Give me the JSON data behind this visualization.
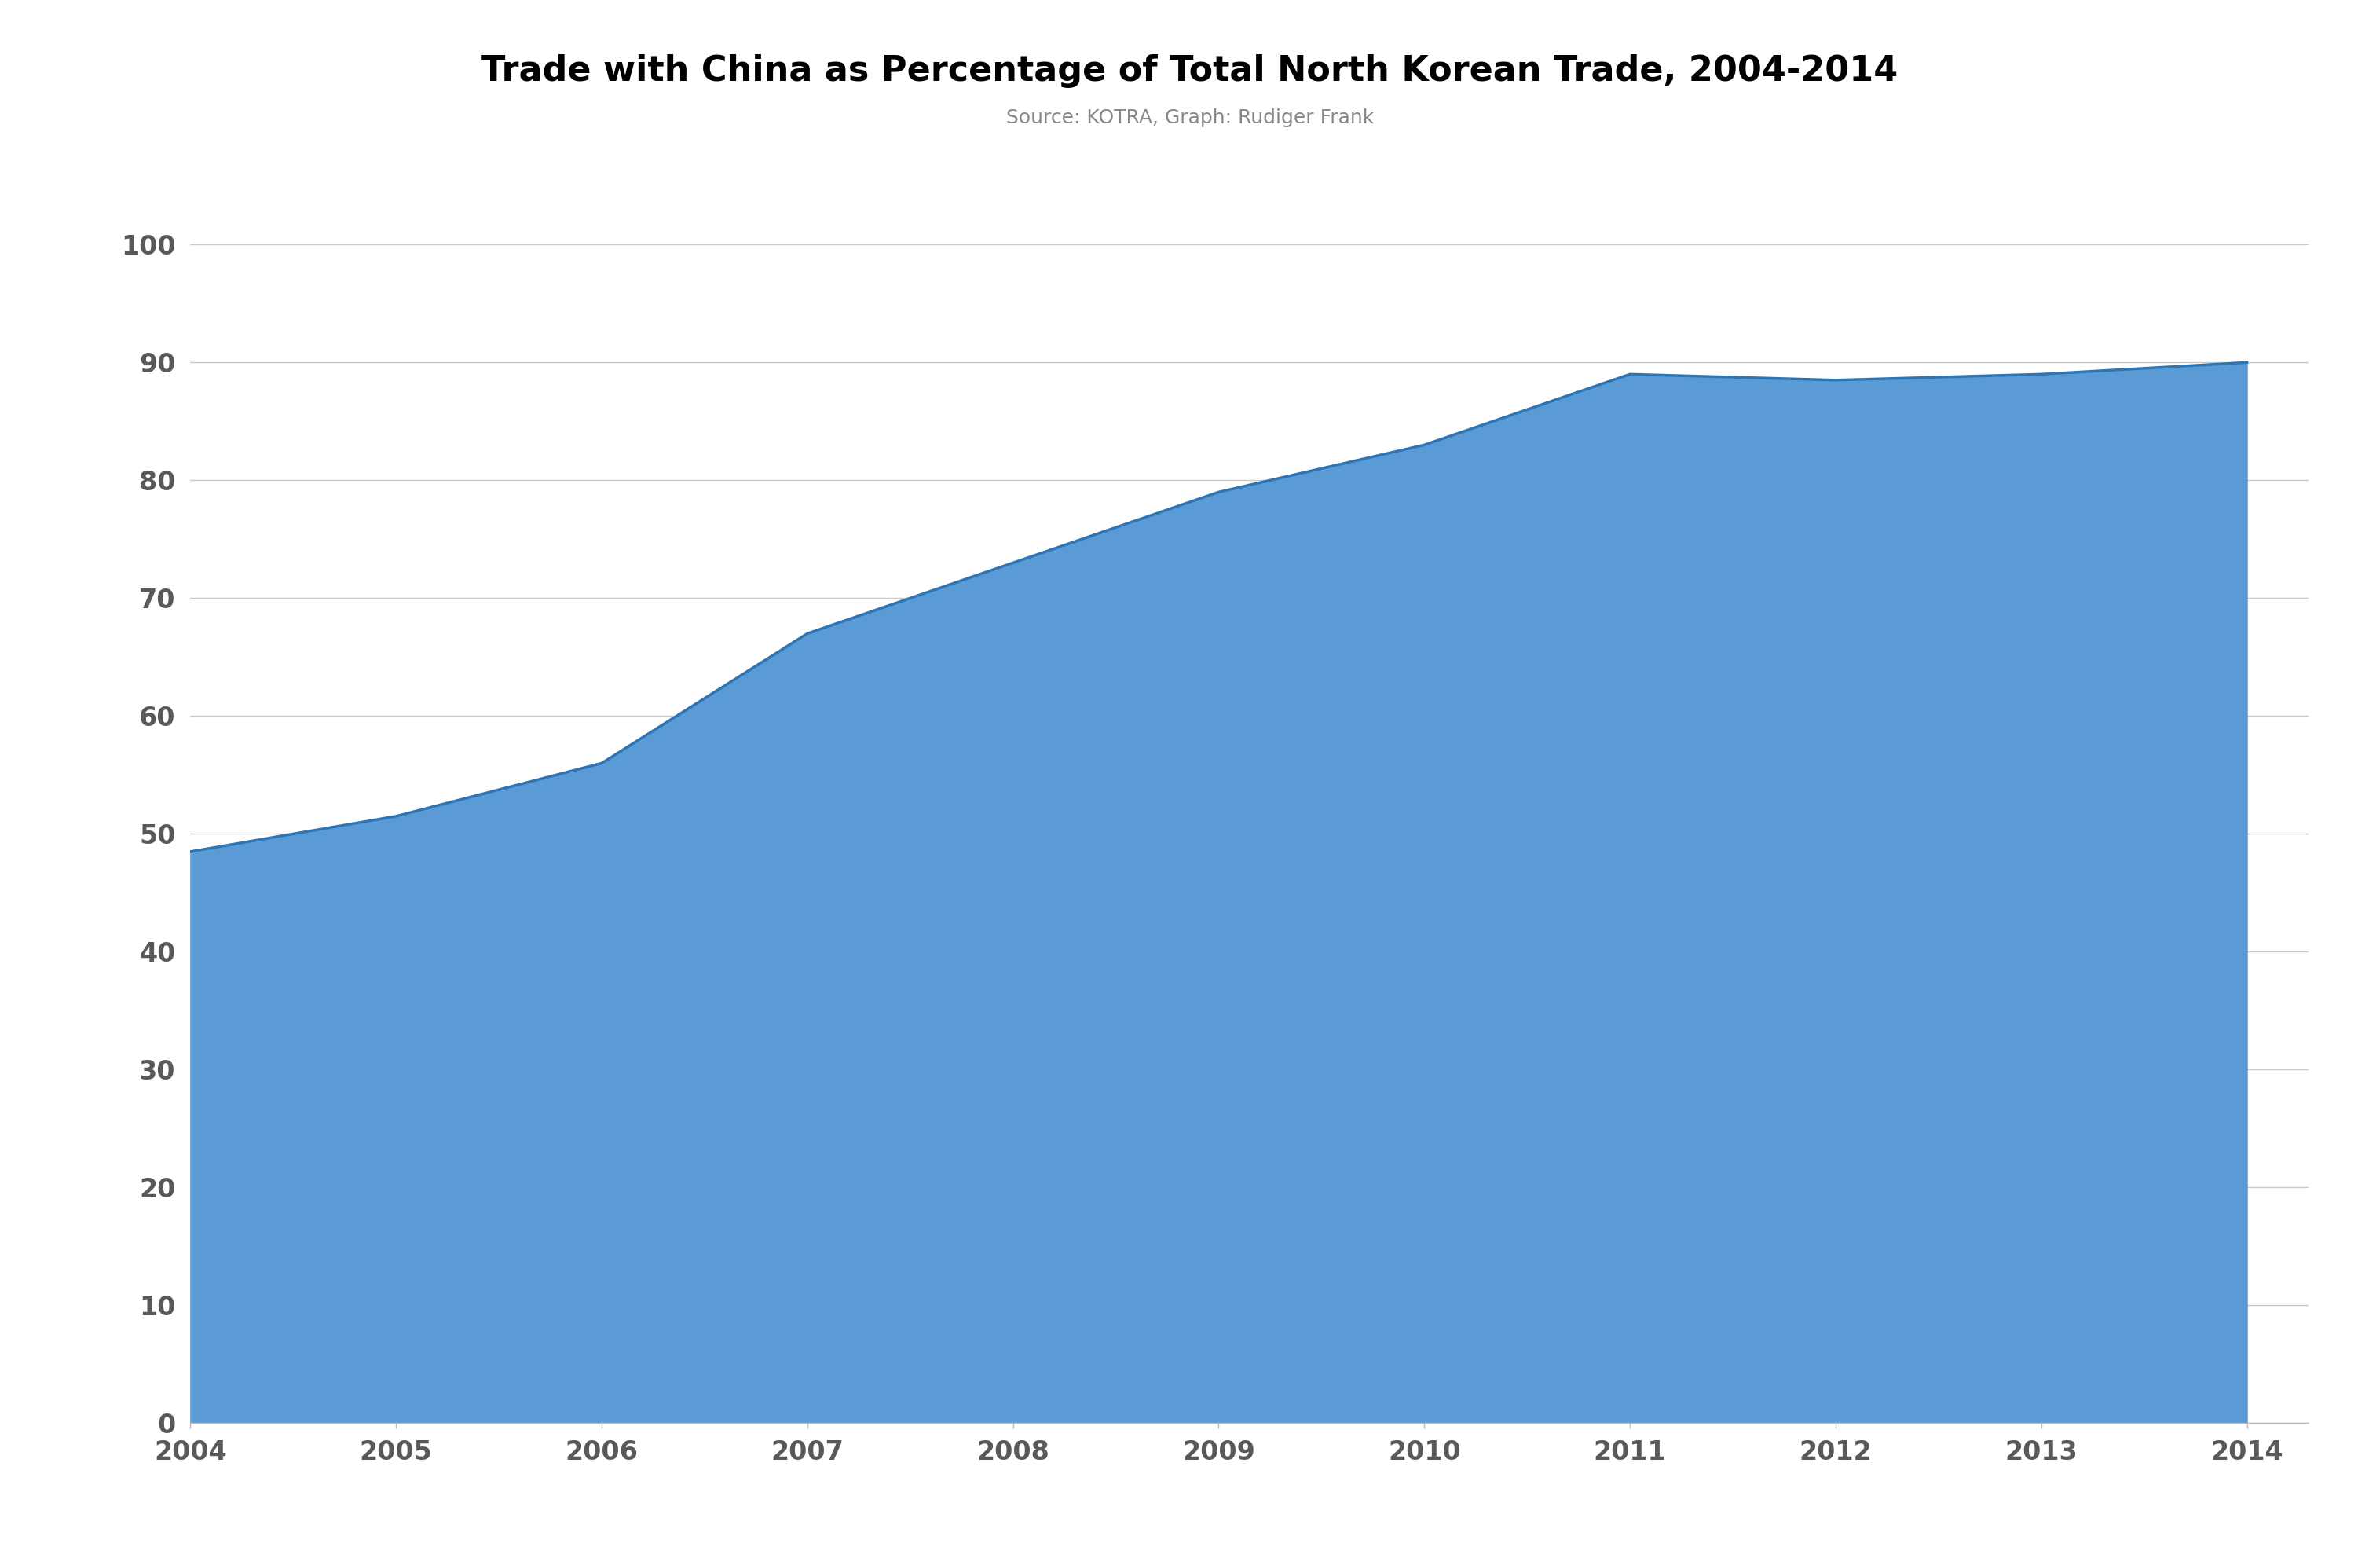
{
  "years": [
    2004,
    2005,
    2006,
    2007,
    2008,
    2009,
    2010,
    2011,
    2012,
    2013,
    2014
  ],
  "values": [
    48.5,
    51.5,
    56.0,
    67.0,
    73.0,
    79.0,
    83.0,
    89.0,
    88.5,
    89.0,
    90.0
  ],
  "fill_color": "#5B9BD5",
  "line_color": "#2E75B6",
  "title": "Trade with China as Percentage of Total North Korean Trade, 2004-2014",
  "subtitle": "Source: KOTRA, Graph: Rudiger Frank",
  "title_fontsize": 32,
  "subtitle_fontsize": 18,
  "ytick_labels": [
    "0",
    "10",
    "20",
    "30",
    "40",
    "50",
    "60",
    "70",
    "80",
    "90",
    "100"
  ],
  "ytick_values": [
    0,
    10,
    20,
    30,
    40,
    50,
    60,
    70,
    80,
    90,
    100
  ],
  "ylim": [
    0,
    105
  ],
  "xlim_left": 2004,
  "xlim_right": 2014.3,
  "background_color": "#FFFFFF",
  "grid_color": "#C8C8C8",
  "tick_label_color": "#595959",
  "tick_label_fontsize": 24,
  "line_width": 2.5
}
